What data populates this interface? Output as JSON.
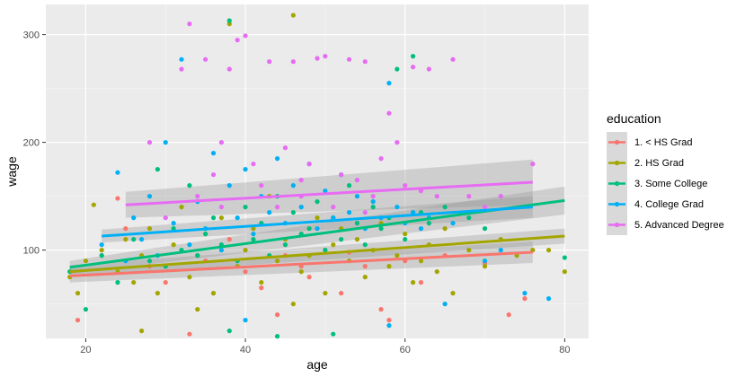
{
  "chart_data": {
    "type": "scatter",
    "title": "",
    "xlabel": "age",
    "ylabel": "wage",
    "xlim": [
      15,
      83
    ],
    "ylim": [
      18,
      328
    ],
    "xticks": [
      20,
      40,
      60,
      80
    ],
    "yticks": [
      100,
      200,
      300
    ],
    "xticklabels": [
      "20",
      "40",
      "60",
      "80"
    ],
    "yticklabels": [
      "100",
      "200",
      "300"
    ],
    "grid": true,
    "legend": {
      "title": "education",
      "placement": "right"
    },
    "series": [
      {
        "name": "1. < HS Grad",
        "color": "#F8766D",
        "trend": {
          "x": [
            18,
            76
          ],
          "y": [
            76,
            98
          ],
          "se_low": [
            70,
            88
          ],
          "se_high": [
            82,
            108
          ]
        },
        "points": [
          [
            19,
            35
          ],
          [
            22,
            95
          ],
          [
            25,
            120
          ],
          [
            28,
            85
          ],
          [
            30,
            70
          ],
          [
            33,
            22
          ],
          [
            35,
            90
          ],
          [
            38,
            110
          ],
          [
            40,
            80
          ],
          [
            42,
            65
          ],
          [
            45,
            95
          ],
          [
            48,
            75
          ],
          [
            50,
            100
          ],
          [
            52,
            60
          ],
          [
            55,
            85
          ],
          [
            57,
            45
          ],
          [
            58,
            35
          ],
          [
            60,
            90
          ],
          [
            62,
            70
          ],
          [
            65,
            95
          ],
          [
            70,
            88
          ],
          [
            73,
            40
          ],
          [
            75,
            55
          ],
          [
            24,
            148
          ],
          [
            36,
            60
          ],
          [
            44,
            40
          ],
          [
            53,
            98
          ],
          [
            47,
            85
          ]
        ]
      },
      {
        "name": "2. HS Grad",
        "color": "#A3A500",
        "trend": {
          "x": [
            18,
            80
          ],
          "y": [
            80,
            113
          ],
          "se_low": [
            75,
            106
          ],
          "se_high": [
            86,
            120
          ]
        },
        "points": [
          [
            18,
            75
          ],
          [
            19,
            60
          ],
          [
            20,
            90
          ],
          [
            21,
            142
          ],
          [
            22,
            100
          ],
          [
            24,
            80
          ],
          [
            25,
            110
          ],
          [
            26,
            70
          ],
          [
            27,
            95
          ],
          [
            28,
            120
          ],
          [
            29,
            60
          ],
          [
            30,
            85
          ],
          [
            31,
            105
          ],
          [
            32,
            140
          ],
          [
            33,
            75
          ],
          [
            34,
            95
          ],
          [
            35,
            115
          ],
          [
            36,
            60
          ],
          [
            37,
            130
          ],
          [
            38,
            310
          ],
          [
            39,
            85
          ],
          [
            40,
            100
          ],
          [
            41,
            120
          ],
          [
            42,
            70
          ],
          [
            43,
            150
          ],
          [
            44,
            90
          ],
          [
            45,
            110
          ],
          [
            46,
            318
          ],
          [
            47,
            80
          ],
          [
            48,
            95
          ],
          [
            49,
            130
          ],
          [
            50,
            60
          ],
          [
            51,
            105
          ],
          [
            52,
            120
          ],
          [
            53,
            90
          ],
          [
            54,
            110
          ],
          [
            55,
            75
          ],
          [
            56,
            100
          ],
          [
            57,
            125
          ],
          [
            58,
            85
          ],
          [
            59,
            95
          ],
          [
            60,
            115
          ],
          [
            61,
            70
          ],
          [
            62,
            90
          ],
          [
            63,
            105
          ],
          [
            64,
            80
          ],
          [
            65,
            120
          ],
          [
            66,
            60
          ],
          [
            68,
            100
          ],
          [
            70,
            85
          ],
          [
            72,
            110
          ],
          [
            74,
            95
          ],
          [
            76,
            100
          ],
          [
            78,
            100
          ],
          [
            80,
            80
          ],
          [
            46,
            50
          ],
          [
            34,
            45
          ],
          [
            27,
            25
          ]
        ]
      },
      {
        "name": "3. Some College",
        "color": "#00BF7D",
        "trend": {
          "x": [
            18,
            80
          ],
          "y": [
            84,
            146
          ],
          "se_low": [
            78,
            133
          ],
          "se_high": [
            90,
            159
          ]
        },
        "points": [
          [
            18,
            80
          ],
          [
            20,
            45
          ],
          [
            22,
            95
          ],
          [
            24,
            70
          ],
          [
            26,
            110
          ],
          [
            28,
            90
          ],
          [
            29,
            175
          ],
          [
            30,
            85
          ],
          [
            31,
            120
          ],
          [
            32,
            100
          ],
          [
            33,
            160
          ],
          [
            34,
            95
          ],
          [
            35,
            115
          ],
          [
            36,
            130
          ],
          [
            37,
            105
          ],
          [
            38,
            313
          ],
          [
            39,
            90
          ],
          [
            40,
            140
          ],
          [
            41,
            110
          ],
          [
            42,
            125
          ],
          [
            43,
            95
          ],
          [
            44,
            150
          ],
          [
            45,
            105
          ],
          [
            46,
            135
          ],
          [
            47,
            115
          ],
          [
            48,
            120
          ],
          [
            49,
            145
          ],
          [
            50,
            100
          ],
          [
            51,
            130
          ],
          [
            52,
            110
          ],
          [
            53,
            160
          ],
          [
            54,
            125
          ],
          [
            55,
            105
          ],
          [
            56,
            140
          ],
          [
            57,
            120
          ],
          [
            58,
            130
          ],
          [
            59,
            268
          ],
          [
            60,
            110
          ],
          [
            61,
            280
          ],
          [
            62,
            135
          ],
          [
            63,
            125
          ],
          [
            65,
            140
          ],
          [
            68,
            130
          ],
          [
            70,
            120
          ],
          [
            80,
            93
          ],
          [
            51,
            22
          ],
          [
            38,
            25
          ],
          [
            44,
            20
          ]
        ]
      },
      {
        "name": "4. College Grad",
        "color": "#00B0F6",
        "trend": {
          "x": [
            22,
            76
          ],
          "y": [
            113,
            140
          ],
          "se_low": [
            107,
            130
          ],
          "se_high": [
            119,
            150
          ]
        },
        "points": [
          [
            22,
            105
          ],
          [
            24,
            172
          ],
          [
            25,
            90
          ],
          [
            26,
            130
          ],
          [
            27,
            110
          ],
          [
            28,
            150
          ],
          [
            29,
            95
          ],
          [
            30,
            200
          ],
          [
            31,
            125
          ],
          [
            32,
            277
          ],
          [
            33,
            105
          ],
          [
            34,
            145
          ],
          [
            35,
            120
          ],
          [
            36,
            190
          ],
          [
            37,
            100
          ],
          [
            38,
            160
          ],
          [
            39,
            130
          ],
          [
            40,
            175
          ],
          [
            41,
            115
          ],
          [
            42,
            150
          ],
          [
            43,
            135
          ],
          [
            44,
            185
          ],
          [
            45,
            125
          ],
          [
            46,
            160
          ],
          [
            47,
            140
          ],
          [
            48,
            180
          ],
          [
            49,
            120
          ],
          [
            50,
            155
          ],
          [
            51,
            130
          ],
          [
            52,
            170
          ],
          [
            53,
            135
          ],
          [
            54,
            150
          ],
          [
            55,
            120
          ],
          [
            56,
            145
          ],
          [
            57,
            130
          ],
          [
            58,
            255
          ],
          [
            59,
            140
          ],
          [
            60,
            125
          ],
          [
            61,
            135
          ],
          [
            62,
            120
          ],
          [
            63,
            130
          ],
          [
            65,
            50
          ],
          [
            66,
            125
          ],
          [
            70,
            90
          ],
          [
            72,
            100
          ],
          [
            75,
            60
          ],
          [
            78,
            55
          ],
          [
            58,
            30
          ],
          [
            40,
            35
          ]
        ]
      },
      {
        "name": "5. Advanced Degree",
        "color": "#E76BF3",
        "trend": {
          "x": [
            25,
            76
          ],
          "y": [
            142,
            163
          ],
          "se_low": [
            130,
            142
          ],
          "se_high": [
            154,
            184
          ]
        },
        "points": [
          [
            28,
            200
          ],
          [
            30,
            130
          ],
          [
            32,
            268
          ],
          [
            33,
            310
          ],
          [
            34,
            150
          ],
          [
            35,
            277
          ],
          [
            36,
            170
          ],
          [
            37,
            200
          ],
          [
            38,
            268
          ],
          [
            39,
            295
          ],
          [
            40,
            299
          ],
          [
            41,
            180
          ],
          [
            42,
            160
          ],
          [
            43,
            275
          ],
          [
            44,
            140
          ],
          [
            45,
            195
          ],
          [
            46,
            275
          ],
          [
            47,
            150
          ],
          [
            48,
            180
          ],
          [
            49,
            278
          ],
          [
            50,
            280
          ],
          [
            51,
            140
          ],
          [
            52,
            170
          ],
          [
            53,
            277
          ],
          [
            54,
            165
          ],
          [
            55,
            275
          ],
          [
            56,
            150
          ],
          [
            57,
            185
          ],
          [
            58,
            227
          ],
          [
            59,
            200
          ],
          [
            60,
            160
          ],
          [
            61,
            270
          ],
          [
            62,
            155
          ],
          [
            63,
            268
          ],
          [
            64,
            150
          ],
          [
            66,
            277
          ],
          [
            68,
            150
          ],
          [
            70,
            140
          ],
          [
            72,
            150
          ],
          [
            76,
            180
          ],
          [
            37,
            140
          ],
          [
            47,
            165
          ],
          [
            55,
            135
          ]
        ]
      }
    ]
  }
}
